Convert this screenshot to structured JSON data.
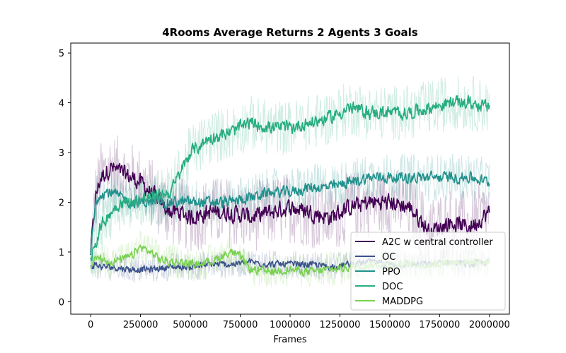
{
  "chart_data": {
    "type": "line",
    "title": "4Rooms Average Returns 2 Agents 3 Goals",
    "xlabel": "Frames",
    "ylabel": "",
    "xlim": [
      -100000,
      2100000
    ],
    "ylim": [
      -0.25,
      5.2
    ],
    "xticks": [
      0,
      250000,
      500000,
      750000,
      1000000,
      1250000,
      1500000,
      1750000,
      2000000
    ],
    "xtick_labels": [
      "0",
      "250000",
      "500000",
      "750000",
      "1000000",
      "1250000",
      "1500000",
      "1750000",
      "2000000"
    ],
    "yticks": [
      0,
      1,
      2,
      3,
      4,
      5
    ],
    "ytick_labels": [
      "0",
      "1",
      "2",
      "3",
      "4",
      "5"
    ],
    "grid": false,
    "legend_position": "lower-right",
    "shaded_band": "raw per-episode returns drawn as a light translucent line behind each smoothed series",
    "series": [
      {
        "name": "A2C w central controller",
        "color": "#440154",
        "x": [
          0,
          25000,
          50000,
          75000,
          100000,
          150000,
          200000,
          250000,
          300000,
          350000,
          400000,
          450000,
          500000,
          600000,
          700000,
          800000,
          900000,
          1000000,
          1100000,
          1200000,
          1300000,
          1400000,
          1500000,
          1600000,
          1700000,
          1800000,
          1900000,
          2000000
        ],
        "y": [
          1.0,
          2.1,
          2.5,
          2.6,
          2.7,
          2.6,
          2.5,
          2.4,
          2.2,
          2.0,
          1.8,
          1.8,
          1.7,
          1.8,
          1.8,
          1.7,
          1.8,
          1.9,
          1.8,
          1.7,
          1.9,
          2.0,
          2.0,
          1.9,
          1.4,
          1.6,
          1.5,
          1.8
        ]
      },
      {
        "name": "OC",
        "color": "#3b528b",
        "x": [
          0,
          25000,
          50000,
          100000,
          200000,
          300000,
          400000,
          500000,
          600000,
          700000,
          800000,
          900000,
          1000000,
          1100000,
          1200000,
          1300000,
          1400000,
          1500000,
          1600000,
          1700000,
          1800000,
          1900000,
          2000000
        ],
        "y": [
          0.7,
          0.75,
          0.7,
          0.7,
          0.65,
          0.65,
          0.7,
          0.7,
          0.75,
          0.75,
          0.8,
          0.75,
          0.75,
          0.75,
          0.7,
          0.75,
          0.8,
          0.75,
          0.75,
          0.75,
          0.8,
          0.75,
          0.8
        ]
      },
      {
        "name": "PPO",
        "color": "#21918c",
        "x": [
          0,
          25000,
          50000,
          100000,
          200000,
          300000,
          400000,
          500000,
          600000,
          700000,
          800000,
          900000,
          1000000,
          1100000,
          1200000,
          1300000,
          1400000,
          1500000,
          1600000,
          1700000,
          1800000,
          1900000,
          2000000
        ],
        "y": [
          1.0,
          2.0,
          2.2,
          2.2,
          2.0,
          2.0,
          2.0,
          2.0,
          2.0,
          2.0,
          2.1,
          2.2,
          2.2,
          2.3,
          2.3,
          2.4,
          2.5,
          2.5,
          2.5,
          2.5,
          2.5,
          2.5,
          2.4
        ]
      },
      {
        "name": "DOC",
        "color": "#27ad81",
        "x": [
          0,
          25000,
          50000,
          100000,
          150000,
          200000,
          300000,
          400000,
          450000,
          500000,
          600000,
          700000,
          800000,
          900000,
          1000000,
          1100000,
          1200000,
          1300000,
          1400000,
          1500000,
          1600000,
          1700000,
          1800000,
          1900000,
          2000000
        ],
        "y": [
          0.9,
          1.2,
          1.5,
          1.8,
          2.0,
          2.0,
          2.1,
          2.2,
          2.6,
          3.0,
          3.3,
          3.4,
          3.6,
          3.5,
          3.5,
          3.6,
          3.7,
          3.9,
          3.8,
          3.8,
          3.8,
          3.9,
          4.0,
          4.0,
          3.9
        ]
      },
      {
        "name": "MADDPG",
        "color": "#7ad151",
        "x": [
          0,
          25000,
          50000,
          100000,
          150000,
          200000,
          250000,
          300000,
          350000,
          400000,
          450000,
          500000,
          600000,
          700000,
          750000,
          800000,
          900000,
          1000000,
          1100000,
          1200000,
          1300000,
          1400000,
          1500000,
          1600000,
          1700000,
          1800000,
          1900000,
          2000000
        ],
        "y": [
          0.7,
          0.9,
          0.85,
          0.8,
          0.85,
          0.9,
          1.1,
          1.0,
          0.85,
          0.8,
          0.8,
          0.75,
          0.8,
          1.0,
          0.9,
          0.65,
          0.6,
          0.65,
          0.6,
          0.65,
          0.7,
          0.75,
          0.75,
          0.75,
          0.75,
          0.8,
          0.8,
          0.8
        ]
      }
    ]
  }
}
